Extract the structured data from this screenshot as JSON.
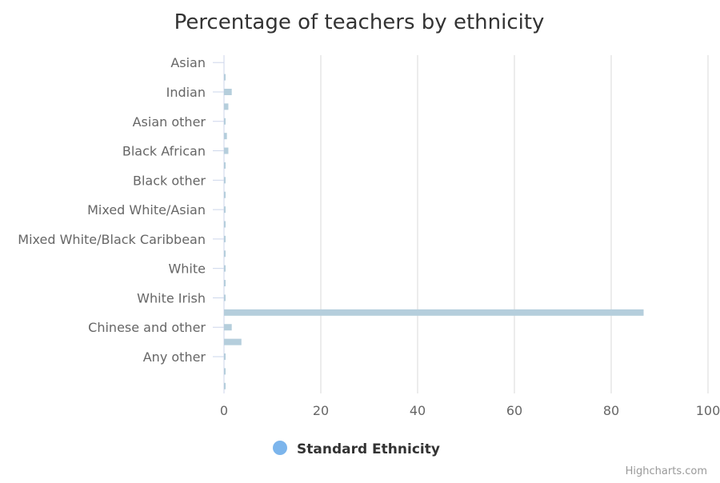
{
  "chart_data": {
    "type": "bar",
    "orientation": "horizontal",
    "title": "Percentage of teachers by ethnicity",
    "xlim": [
      0,
      100
    ],
    "x_ticks": [
      "0",
      "20",
      "40",
      "60",
      "80",
      "100"
    ],
    "grid": true,
    "labeled_categories": [
      "Asian",
      "Indian",
      "Asian other",
      "Black African",
      "Black other",
      "Mixed White/Asian",
      "Mixed White/Black Caribbean",
      "White",
      "White Irish",
      "Chinese and other",
      "Any other"
    ],
    "values": [
      0,
      0.3,
      1.6,
      0.9,
      0.3,
      0.6,
      0.9,
      0.1,
      0.1,
      0.1,
      0.1,
      0.1,
      0.1,
      0.1,
      0.1,
      0.3,
      0.1,
      86.7,
      1.6,
      3.6,
      0.1,
      0.1,
      0.3
    ],
    "bar_color": "#b5cedc",
    "legend": {
      "position": "bottom-center",
      "items": [
        {
          "name": "Standard Ethnicity",
          "color": "#7cb5ec"
        }
      ]
    },
    "credits": "Highcharts.com"
  }
}
